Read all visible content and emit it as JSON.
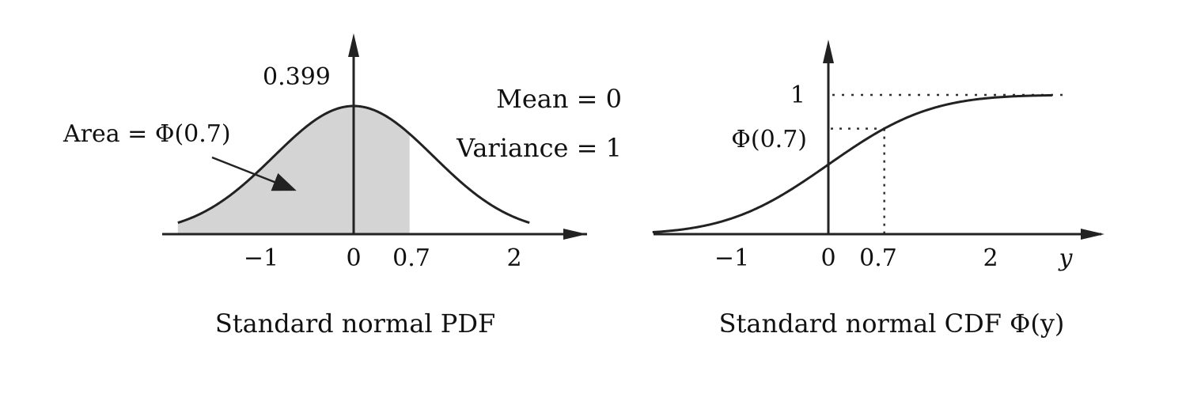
{
  "chart_data": [
    {
      "type": "area",
      "title": "Standard normal PDF",
      "peak_label": "0.399",
      "mean_label": "Mean = 0",
      "variance_label": "Variance = 1",
      "area_label": "Area = Φ(0.7)",
      "xticks": [
        "−1",
        "0",
        "0.7",
        "2"
      ],
      "tick_values": [
        -1,
        0,
        0.7,
        2
      ],
      "xlim": [
        -1.9,
        2.5
      ],
      "ylim": [
        0,
        0.44
      ],
      "peak": 0.399,
      "shade_upper": 0.7
    },
    {
      "type": "line",
      "title": "Standard normal CDF Φ(y)",
      "xlabel": "y",
      "xticks": [
        "−1",
        "0",
        "0.7",
        "2"
      ],
      "tick_values": [
        -1,
        0,
        0.7,
        2
      ],
      "y_marks": [
        {
          "label": "1",
          "value": 1
        },
        {
          "label": "Φ(0.7)",
          "value": 0.758
        }
      ],
      "xlim": [
        -1.9,
        2.5
      ],
      "ylim": [
        0,
        1.2
      ],
      "mark_x": 0.7
    }
  ]
}
